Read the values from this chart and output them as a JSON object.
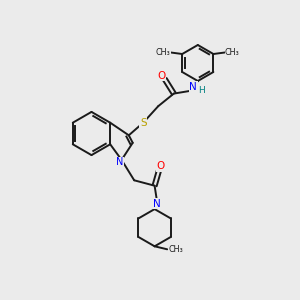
{
  "bg_color": "#ebebeb",
  "bond_color": "#1a1a1a",
  "figsize": [
    3.0,
    3.0
  ],
  "dpi": 100,
  "xlim": [
    0,
    10
  ],
  "ylim": [
    0,
    10
  ]
}
